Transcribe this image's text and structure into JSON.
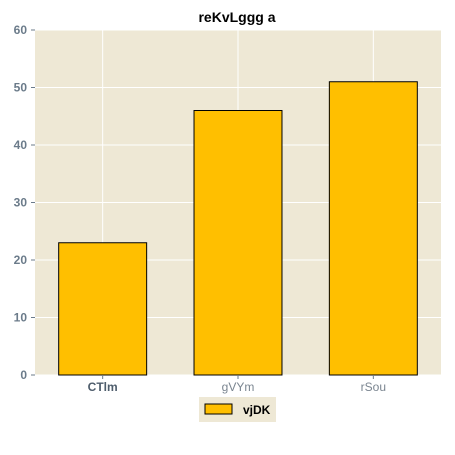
{
  "chart_data": {
    "type": "bar",
    "title": "reKvLggg a",
    "xlabel": "",
    "ylabel": "",
    "categories": [
      "CTlm",
      "gVYm",
      "rSou"
    ],
    "series": [
      {
        "name": "vjDK",
        "values": [
          23,
          46,
          51
        ]
      }
    ],
    "ylim": [
      0,
      60
    ],
    "yticks": [
      "0",
      "10",
      "20",
      "30",
      "40",
      "50",
      "60"
    ],
    "grid": true,
    "legend_position": "bottom-center",
    "colors": {
      "bar": "#ffbf00",
      "bar_edge": "#000000",
      "plot_background": "#eee8d5",
      "grid": "#ffffff",
      "legend_background": "#eee8d5"
    }
  }
}
